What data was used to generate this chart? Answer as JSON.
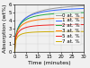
{
  "title": "",
  "xlabel": "Time (minutes)",
  "ylabel": "Absorption (wt%)",
  "xlim": [
    0,
    30
  ],
  "ylim": [
    0,
    6
  ],
  "yticks": [
    0,
    1,
    2,
    3,
    4,
    5,
    6
  ],
  "xticks": [
    0,
    5,
    10,
    15,
    20,
    25,
    30
  ],
  "series": [
    {
      "label": "0 at. %",
      "color": "#999999",
      "saturation": 6.2,
      "rate": 0.55
    },
    {
      "label": "1 at. %",
      "color": "#3366ff",
      "saturation": 5.7,
      "rate": 0.65
    },
    {
      "label": "2 at. %",
      "color": "#22aa44",
      "saturation": 5.1,
      "rate": 0.75
    },
    {
      "label": "3 at. %",
      "color": "#ff7700",
      "saturation": 4.4,
      "rate": 0.85
    },
    {
      "label": "5 at. %",
      "color": "#ee2222",
      "saturation": 3.5,
      "rate": 1.0
    },
    {
      "label": "7 at. %",
      "color": "#ccaa00",
      "saturation": 2.6,
      "rate": 1.2
    }
  ],
  "legend_fontsize": 4.0,
  "tick_fontsize": 3.8,
  "label_fontsize": 4.5,
  "background_color": "#f0f0f0",
  "grid": true
}
